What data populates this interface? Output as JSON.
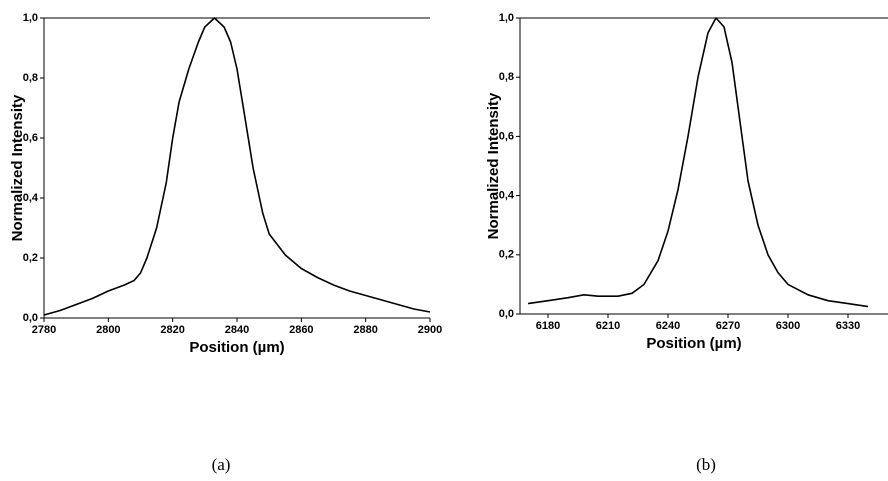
{
  "chart_data": [
    {
      "type": "line",
      "caption": "(a)",
      "xlabel": "Position (µm)",
      "ylabel": "Normalized Intensity",
      "color": "#000000",
      "xlim": [
        2780,
        2900
      ],
      "xticks": [
        2780,
        2800,
        2820,
        2840,
        2860,
        2880,
        2900
      ],
      "ylim": [
        0,
        1
      ],
      "yticks": [
        {
          "value": 0,
          "label": "0,0"
        },
        {
          "value": 0.2,
          "label": "0,2"
        },
        {
          "value": 0.4,
          "label": "0,4"
        },
        {
          "value": 0.6,
          "label": "0,6"
        },
        {
          "value": 0.8,
          "label": "0,8"
        },
        {
          "value": 1,
          "label": "1,0"
        }
      ],
      "x": [
        2780,
        2785,
        2790,
        2795,
        2800,
        2805,
        2808,
        2810,
        2812,
        2815,
        2818,
        2820,
        2822,
        2825,
        2828,
        2830,
        2833,
        2836,
        2838,
        2840,
        2842,
        2845,
        2848,
        2850,
        2855,
        2860,
        2865,
        2870,
        2875,
        2880,
        2885,
        2890,
        2895,
        2900
      ],
      "values": [
        0.01,
        0.025,
        0.045,
        0.065,
        0.09,
        0.11,
        0.125,
        0.15,
        0.2,
        0.3,
        0.45,
        0.6,
        0.72,
        0.83,
        0.92,
        0.97,
        1.0,
        0.97,
        0.92,
        0.83,
        0.7,
        0.5,
        0.35,
        0.28,
        0.21,
        0.165,
        0.135,
        0.11,
        0.09,
        0.075,
        0.06,
        0.045,
        0.03,
        0.02
      ]
    },
    {
      "type": "line",
      "caption": "(b)",
      "xlabel": "Position (µm)",
      "ylabel": "Normalized Intensity",
      "color": "#000000",
      "xlim": [
        6166,
        6350
      ],
      "xticks": [
        6180,
        6210,
        6240,
        6270,
        6300,
        6330
      ],
      "ylim": [
        0,
        1
      ],
      "yticks": [
        {
          "value": 0,
          "label": "0,0"
        },
        {
          "value": 0.2,
          "label": "0,2"
        },
        {
          "value": 0.4,
          "label": "0,4"
        },
        {
          "value": 0.6,
          "label": "0,6"
        },
        {
          "value": 0.8,
          "label": "0,8"
        },
        {
          "value": 1,
          "label": "1,0"
        }
      ],
      "x": [
        6170,
        6180,
        6190,
        6198,
        6205,
        6215,
        6222,
        6228,
        6235,
        6240,
        6245,
        6250,
        6255,
        6260,
        6264,
        6268,
        6272,
        6276,
        6280,
        6285,
        6290,
        6295,
        6300,
        6310,
        6320,
        6330,
        6340
      ],
      "values": [
        0.035,
        0.045,
        0.055,
        0.065,
        0.06,
        0.06,
        0.07,
        0.1,
        0.18,
        0.28,
        0.42,
        0.6,
        0.8,
        0.95,
        1.0,
        0.97,
        0.85,
        0.65,
        0.45,
        0.3,
        0.2,
        0.14,
        0.1,
        0.065,
        0.045,
        0.035,
        0.025
      ]
    }
  ]
}
